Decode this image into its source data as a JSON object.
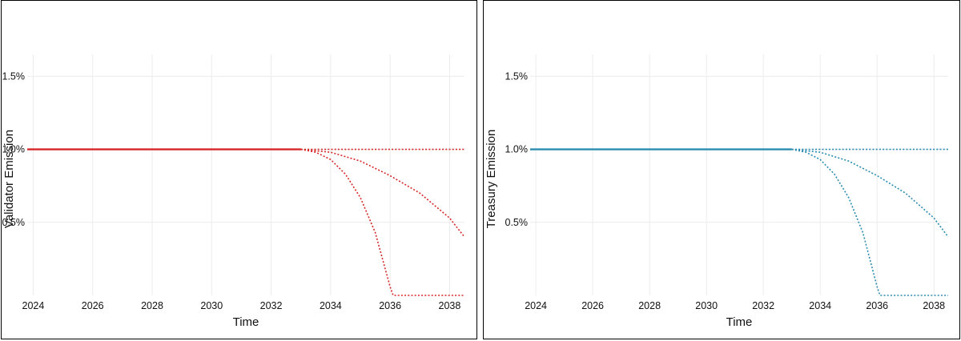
{
  "chart_data": [
    {
      "type": "line",
      "title": "",
      "xlabel": "Time",
      "ylabel": "Validator Emission",
      "xlim": [
        2023.8,
        2038.5
      ],
      "ylim": [
        0.0,
        1.65
      ],
      "xticks": [
        2024,
        2026,
        2028,
        2030,
        2032,
        2034,
        2036,
        2038
      ],
      "xtick_labels": [
        "2024",
        "2026",
        "2028",
        "2030",
        "2032",
        "2034",
        "2036",
        "2038"
      ],
      "yticks": [
        0.5,
        1.0,
        1.5
      ],
      "ytick_labels": [
        "0.5%",
        "1.0%",
        "1.5%"
      ],
      "grid": true,
      "color": "#d62728",
      "series": [
        {
          "style": "solid",
          "x": [
            2023.8,
            2033.0
          ],
          "y": [
            1.0,
            1.0
          ]
        },
        {
          "style": "dotted",
          "x": [
            2033.0,
            2038.5
          ],
          "y": [
            1.0,
            1.0
          ]
        },
        {
          "style": "dotted",
          "x": [
            2033.0,
            2034.0,
            2035.0,
            2036.0,
            2037.0,
            2038.0,
            2038.5
          ],
          "y": [
            1.0,
            0.98,
            0.92,
            0.82,
            0.7,
            0.53,
            0.4
          ]
        },
        {
          "style": "dotted",
          "x": [
            2033.0,
            2033.5,
            2034.0,
            2034.5,
            2035.0,
            2035.5,
            2036.0,
            2036.1,
            2038.5
          ],
          "y": [
            1.0,
            0.98,
            0.93,
            0.83,
            0.67,
            0.43,
            0.06,
            0.0,
            0.0
          ]
        }
      ]
    },
    {
      "type": "line",
      "title": "",
      "xlabel": "Time",
      "ylabel": "Treasury Emission",
      "xlim": [
        2023.8,
        2038.5
      ],
      "ylim": [
        0.0,
        1.65
      ],
      "xticks": [
        2024,
        2026,
        2028,
        2030,
        2032,
        2034,
        2036,
        2038
      ],
      "xtick_labels": [
        "2024",
        "2026",
        "2028",
        "2030",
        "2032",
        "2034",
        "2036",
        "2038"
      ],
      "yticks": [
        0.5,
        1.0,
        1.5
      ],
      "ytick_labels": [
        "0.5%",
        "1.0%",
        "1.5%"
      ],
      "grid": true,
      "color": "#2b8cb0",
      "series": [
        {
          "style": "solid",
          "x": [
            2023.8,
            2033.0
          ],
          "y": [
            1.0,
            1.0
          ]
        },
        {
          "style": "dotted",
          "x": [
            2033.0,
            2038.5
          ],
          "y": [
            1.0,
            1.0
          ]
        },
        {
          "style": "dotted",
          "x": [
            2033.0,
            2034.0,
            2035.0,
            2036.0,
            2037.0,
            2038.0,
            2038.5
          ],
          "y": [
            1.0,
            0.98,
            0.92,
            0.82,
            0.7,
            0.53,
            0.4
          ]
        },
        {
          "style": "dotted",
          "x": [
            2033.0,
            2033.5,
            2034.0,
            2034.5,
            2035.0,
            2035.5,
            2036.0,
            2036.1,
            2038.5
          ],
          "y": [
            1.0,
            0.98,
            0.93,
            0.83,
            0.67,
            0.43,
            0.06,
            0.0,
            0.0
          ]
        }
      ]
    }
  ]
}
